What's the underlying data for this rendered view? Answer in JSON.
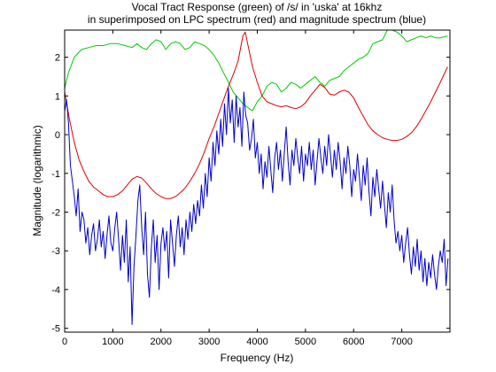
{
  "chart_data": {
    "type": "line",
    "title": "Vocal Tract Response (green) of /s/ in 'uska' at 16khz",
    "subtitle": "in superimposed on LPC spectrum (red) and magnitude spectrum (blue)",
    "xlabel": "Frequency (Hz)",
    "ylabel": "Magnitude (logarithmic)",
    "xlim": [
      0,
      8000
    ],
    "ylim": [
      -5.1,
      2.7
    ],
    "xticks": [
      0,
      1000,
      2000,
      3000,
      4000,
      5000,
      6000,
      7000
    ],
    "yticks": [
      -5,
      -4,
      -3,
      -2,
      -1,
      0,
      1,
      2
    ],
    "grid": false,
    "legend": "none",
    "series": [
      {
        "color": "#00cc00",
        "x": [
          0,
          80,
          200,
          350,
          500,
          650,
          800,
          950,
          1100,
          1250,
          1400,
          1500,
          1600,
          1700,
          1800,
          1900,
          2000,
          2100,
          2200,
          2300,
          2400,
          2500,
          2600,
          2700,
          2800,
          2900,
          3000,
          3100,
          3200,
          3300,
          3400,
          3500,
          3600,
          3700,
          3800,
          3900,
          4000,
          4100,
          4200,
          4300,
          4400,
          4500,
          4600,
          4700,
          4800,
          4900,
          5000,
          5100,
          5200,
          5300,
          5400,
          5500,
          5600,
          5700,
          5800,
          5900,
          6000,
          6100,
          6200,
          6300,
          6400,
          6500,
          6600,
          6700,
          6800,
          6900,
          7000,
          7100,
          7200,
          7300,
          7400,
          7500,
          7600,
          7700,
          7800,
          7950
        ],
        "y": [
          1.2,
          1.6,
          2.0,
          2.2,
          2.25,
          2.3,
          2.3,
          2.35,
          2.35,
          2.3,
          2.25,
          2.35,
          2.25,
          2.2,
          2.35,
          2.45,
          2.4,
          2.2,
          2.35,
          2.4,
          2.35,
          2.2,
          2.25,
          2.4,
          2.35,
          2.3,
          2.2,
          2.05,
          1.85,
          1.6,
          1.35,
          1.1,
          0.95,
          0.8,
          0.7,
          0.62,
          0.85,
          1.0,
          1.25,
          1.35,
          1.3,
          1.1,
          1.2,
          1.35,
          1.3,
          1.2,
          1.3,
          1.4,
          1.5,
          1.35,
          1.25,
          1.4,
          1.45,
          1.5,
          1.65,
          1.75,
          1.85,
          1.95,
          2.0,
          2.1,
          2.35,
          2.4,
          2.45,
          2.7,
          2.7,
          2.65,
          2.55,
          2.4,
          2.45,
          2.5,
          2.55,
          2.5,
          2.55,
          2.5,
          2.5,
          2.55
        ]
      },
      {
        "color": "#dd0000",
        "x": [
          0,
          100,
          200,
          300,
          400,
          500,
          600,
          700,
          800,
          900,
          1000,
          1100,
          1200,
          1300,
          1400,
          1500,
          1600,
          1700,
          1800,
          1900,
          2000,
          2100,
          2200,
          2300,
          2400,
          2500,
          2600,
          2700,
          2800,
          2900,
          3000,
          3100,
          3200,
          3300,
          3400,
          3500,
          3600,
          3700,
          3750,
          3800,
          3900,
          4000,
          4100,
          4200,
          4300,
          4400,
          4500,
          4600,
          4700,
          4800,
          4900,
          5000,
          5100,
          5200,
          5300,
          5400,
          5500,
          5600,
          5700,
          5800,
          5900,
          6000,
          6100,
          6200,
          6300,
          6400,
          6500,
          6600,
          6700,
          6800,
          6900,
          7000,
          7100,
          7200,
          7300,
          7400,
          7500,
          7600,
          7700,
          7800,
          7950
        ],
        "y": [
          1.1,
          0.4,
          -0.2,
          -0.65,
          -0.95,
          -1.2,
          -1.35,
          -1.45,
          -1.55,
          -1.6,
          -1.6,
          -1.55,
          -1.45,
          -1.3,
          -1.15,
          -1.08,
          -1.12,
          -1.25,
          -1.4,
          -1.52,
          -1.6,
          -1.65,
          -1.65,
          -1.6,
          -1.5,
          -1.38,
          -1.2,
          -1.0,
          -0.75,
          -0.45,
          -0.1,
          0.2,
          0.55,
          0.9,
          1.25,
          1.55,
          1.9,
          2.55,
          2.65,
          2.35,
          1.75,
          1.35,
          1.0,
          0.85,
          0.8,
          0.75,
          0.72,
          0.75,
          0.7,
          0.67,
          0.72,
          0.82,
          1.0,
          1.15,
          1.3,
          1.22,
          1.05,
          1.02,
          1.1,
          1.15,
          1.1,
          0.95,
          0.7,
          0.48,
          0.25,
          0.1,
          0.0,
          -0.08,
          -0.12,
          -0.15,
          -0.15,
          -0.12,
          -0.05,
          0.05,
          0.2,
          0.4,
          0.62,
          0.85,
          1.1,
          1.35,
          1.75
        ]
      },
      {
        "color": "#0000cc",
        "x": [
          0,
          40,
          80,
          120,
          160,
          200,
          240,
          280,
          320,
          360,
          400,
          440,
          480,
          520,
          560,
          600,
          640,
          680,
          720,
          760,
          800,
          840,
          880,
          920,
          960,
          1000,
          1040,
          1080,
          1120,
          1160,
          1200,
          1240,
          1280,
          1320,
          1360,
          1400,
          1440,
          1480,
          1520,
          1560,
          1600,
          1640,
          1680,
          1720,
          1760,
          1800,
          1840,
          1880,
          1920,
          1960,
          2000,
          2040,
          2080,
          2120,
          2160,
          2200,
          2240,
          2280,
          2320,
          2360,
          2400,
          2440,
          2480,
          2520,
          2560,
          2600,
          2640,
          2680,
          2720,
          2760,
          2800,
          2840,
          2880,
          2920,
          2960,
          3000,
          3040,
          3080,
          3120,
          3160,
          3200,
          3240,
          3280,
          3320,
          3360,
          3400,
          3440,
          3480,
          3520,
          3560,
          3600,
          3640,
          3680,
          3720,
          3760,
          3800,
          3840,
          3880,
          3920,
          3960,
          4000,
          4040,
          4080,
          4120,
          4160,
          4200,
          4240,
          4280,
          4320,
          4360,
          4400,
          4440,
          4480,
          4520,
          4560,
          4600,
          4640,
          4680,
          4720,
          4760,
          4800,
          4840,
          4880,
          4920,
          4960,
          5000,
          5040,
          5080,
          5120,
          5160,
          5200,
          5240,
          5280,
          5320,
          5360,
          5400,
          5440,
          5480,
          5520,
          5560,
          5600,
          5640,
          5680,
          5720,
          5760,
          5800,
          5840,
          5880,
          5920,
          5960,
          6000,
          6040,
          6080,
          6120,
          6160,
          6200,
          6240,
          6280,
          6320,
          6360,
          6400,
          6440,
          6480,
          6520,
          6560,
          6600,
          6640,
          6680,
          6720,
          6760,
          6800,
          6840,
          6880,
          6920,
          6960,
          7000,
          7040,
          7080,
          7120,
          7160,
          7200,
          7240,
          7280,
          7320,
          7360,
          7400,
          7440,
          7480,
          7520,
          7560,
          7600,
          7640,
          7680,
          7720,
          7760,
          7800,
          7840,
          7880,
          7920,
          7960
        ],
        "y": [
          0.6,
          0.9,
          0.3,
          -0.8,
          -1.2,
          -1.6,
          -2.1,
          -1.4,
          -2.5,
          -2.0,
          -2.2,
          -2.8,
          -2.4,
          -3.1,
          -2.6,
          -2.3,
          -3.0,
          -2.7,
          -2.2,
          -2.9,
          -2.5,
          -3.2,
          -2.6,
          -2.1,
          -2.8,
          -3.0,
          -2.4,
          -2.0,
          -2.7,
          -3.5,
          -2.6,
          -3.3,
          -2.2,
          -3.8,
          -2.9,
          -4.9,
          -3.4,
          -2.6,
          -1.7,
          -1.3,
          -2.4,
          -3.1,
          -2.0,
          -3.6,
          -4.2,
          -2.9,
          -2.2,
          -3.3,
          -2.6,
          -4.0,
          -2.8,
          -2.4,
          -3.0,
          -2.5,
          -3.7,
          -2.2,
          -2.8,
          -3.4,
          -2.6,
          -2.1,
          -2.9,
          -2.4,
          -3.1,
          -2.2,
          -2.7,
          -2.0,
          -2.5,
          -1.8,
          -2.3,
          -1.7,
          -2.1,
          -1.3,
          -1.9,
          -1.0,
          -1.6,
          -0.6,
          -1.2,
          -0.2,
          -0.8,
          0.1,
          -0.5,
          0.4,
          -0.3,
          0.8,
          0.0,
          1.2,
          0.3,
          0.9,
          -0.2,
          1.0,
          0.2,
          0.7,
          -0.3,
          1.1,
          0.5,
          0.3,
          -0.4,
          -0.1,
          0.4,
          -0.6,
          -0.2,
          -1.0,
          -0.5,
          -1.4,
          -0.7,
          -1.1,
          -0.3,
          -0.9,
          -1.5,
          -0.6,
          -0.2,
          -0.9,
          -0.4,
          -1.2,
          -0.5,
          0.2,
          -0.7,
          -1.3,
          -0.4,
          -0.8,
          -0.1,
          -0.6,
          -1.0,
          -0.3,
          -1.2,
          -0.5,
          -0.8,
          -0.2,
          -0.9,
          -0.4,
          -1.3,
          -0.7,
          -0.1,
          -0.6,
          -1.0,
          -0.3,
          -0.8,
          0.0,
          -0.5,
          -1.1,
          -0.4,
          -0.9,
          -0.2,
          -0.7,
          -1.4,
          -0.6,
          -1.0,
          -0.3,
          -0.8,
          -1.6,
          -0.9,
          -1.2,
          -0.5,
          -1.1,
          -1.7,
          -0.8,
          -1.3,
          -0.6,
          -1.5,
          -2.1,
          -1.1,
          -1.6,
          -0.9,
          -1.4,
          -1.9,
          -1.2,
          -1.8,
          -2.4,
          -1.5,
          -2.0,
          -1.3,
          -2.2,
          -2.8,
          -2.5,
          -3.0,
          -2.6,
          -3.3,
          -2.8,
          -2.4,
          -3.1,
          -3.6,
          -2.9,
          -3.4,
          -2.7,
          -3.5,
          -3.0,
          -3.8,
          -3.2,
          -3.9,
          -3.3,
          -3.7,
          -3.1,
          -3.6,
          -4.0,
          -3.4,
          -3.0,
          -3.3,
          -2.7,
          -3.9,
          -3.2
        ]
      }
    ]
  }
}
